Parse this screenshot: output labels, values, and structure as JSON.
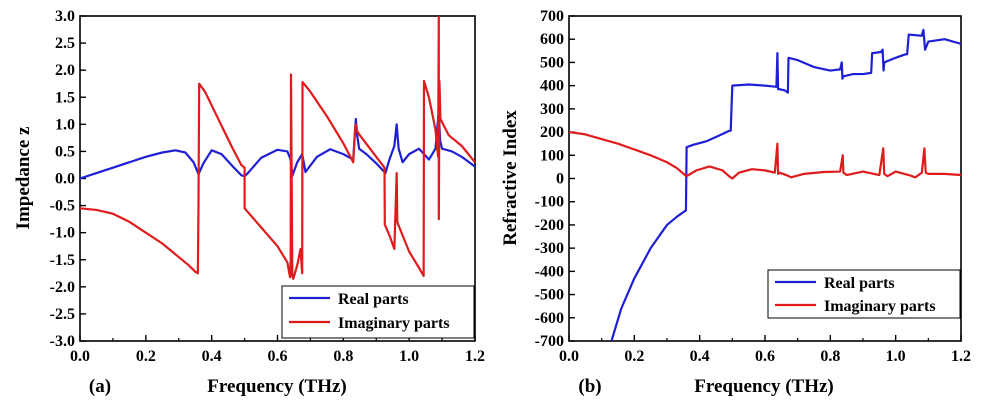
{
  "colors": {
    "real": "#1f1fd6",
    "imag": "#e01b1b",
    "axis": "#000000"
  },
  "chart_data": [
    {
      "type": "line",
      "panel": "(a)",
      "title": "",
      "xlabel": "Frequency (THz)",
      "ylabel": "Impedance z",
      "xlim": [
        0.0,
        1.2
      ],
      "ylim": [
        -3.0,
        3.0
      ],
      "xticks": [
        "0.0",
        "0.2",
        "0.4",
        "0.6",
        "0.8",
        "1.0",
        "1.2"
      ],
      "yticks": [
        "3.0",
        "2.5",
        "2.0",
        "1.5",
        "1.0",
        "0.5",
        "0.0",
        "-0.5",
        "-1.0",
        "-1.5",
        "-2.0",
        "-2.5",
        "-3.0"
      ],
      "grid": false,
      "legend_position": "bottom-right",
      "series": [
        {
          "name": "Real parts",
          "color": "#1f1fd6",
          "x": [
            0.0,
            0.05,
            0.1,
            0.15,
            0.2,
            0.25,
            0.29,
            0.32,
            0.345,
            0.36,
            0.375,
            0.4,
            0.43,
            0.46,
            0.49,
            0.5,
            0.51,
            0.55,
            0.6,
            0.63,
            0.64,
            0.645,
            0.66,
            0.675,
            0.685,
            0.72,
            0.76,
            0.8,
            0.83,
            0.838,
            0.842,
            0.848,
            0.87,
            0.9,
            0.928,
            0.94,
            0.955,
            0.962,
            0.968,
            0.98,
            1.0,
            1.03,
            1.045,
            1.06,
            1.08,
            1.09,
            1.094,
            1.1,
            1.13,
            1.16,
            1.2
          ],
          "y": [
            0.0,
            0.1,
            0.2,
            0.3,
            0.4,
            0.48,
            0.52,
            0.48,
            0.3,
            0.08,
            0.28,
            0.52,
            0.45,
            0.25,
            0.06,
            0.04,
            0.1,
            0.38,
            0.53,
            0.5,
            0.35,
            0.05,
            0.3,
            0.45,
            0.12,
            0.4,
            0.54,
            0.45,
            0.35,
            1.1,
            0.8,
            0.55,
            0.45,
            0.28,
            0.1,
            0.35,
            0.6,
            1.0,
            0.55,
            0.3,
            0.45,
            0.55,
            0.45,
            0.35,
            0.55,
            1.25,
            0.7,
            0.55,
            0.5,
            0.4,
            0.22
          ]
        },
        {
          "name": "Imaginary parts",
          "color": "#e01b1b",
          "x": [
            0.0,
            0.05,
            0.1,
            0.15,
            0.2,
            0.25,
            0.3,
            0.33,
            0.35,
            0.358,
            0.36,
            0.362,
            0.38,
            0.42,
            0.46,
            0.49,
            0.5,
            0.5001,
            0.55,
            0.6,
            0.63,
            0.638,
            0.64,
            0.641,
            0.645,
            0.648,
            0.66,
            0.67,
            0.675,
            0.676,
            0.7,
            0.75,
            0.8,
            0.83,
            0.836,
            0.838,
            0.839,
            0.85,
            0.9,
            0.925,
            0.926,
            0.94,
            0.955,
            0.962,
            0.964,
            0.97,
            1.0,
            1.03,
            1.044,
            1.045,
            1.06,
            1.08,
            1.088,
            1.09,
            1.0901,
            1.092,
            1.095,
            1.12,
            1.16,
            1.2
          ],
          "y": [
            -0.55,
            -0.58,
            -0.65,
            -0.8,
            -1.0,
            -1.2,
            -1.45,
            -1.6,
            -1.72,
            -1.75,
            -0.5,
            1.75,
            1.6,
            1.1,
            0.6,
            0.25,
            0.2,
            -0.55,
            -0.9,
            -1.25,
            -1.55,
            -1.82,
            -1.5,
            1.92,
            -1.8,
            -1.85,
            -1.6,
            -1.3,
            -1.75,
            1.78,
            1.6,
            1.15,
            0.65,
            0.3,
            0.95,
            1.0,
            0.9,
            0.8,
            0.4,
            0.2,
            -0.85,
            -1.05,
            -1.3,
            0.1,
            -0.8,
            -0.9,
            -1.35,
            -1.65,
            -1.8,
            1.8,
            1.5,
            0.9,
            0.4,
            3.0,
            -0.75,
            1.8,
            1.1,
            0.8,
            0.6,
            0.3
          ]
        }
      ]
    },
    {
      "type": "line",
      "panel": "(b)",
      "title": "",
      "xlabel": "Frequency (THz)",
      "ylabel": "Refractive Index",
      "xlim": [
        0.0,
        1.2
      ],
      "ylim": [
        -700,
        700
      ],
      "xticks": [
        "0.0",
        "0.2",
        "0.4",
        "0.6",
        "0.8",
        "1.0",
        "1.2"
      ],
      "yticks": [
        "700",
        "600",
        "500",
        "400",
        "300",
        "200",
        "100",
        "0",
        "-100",
        "-200",
        "-300",
        "-400",
        "-500",
        "-600",
        "-700"
      ],
      "grid": false,
      "legend_position": "bottom-right",
      "series": [
        {
          "name": "Real parts",
          "color": "#1f1fd6",
          "x": [
            0.13,
            0.16,
            0.2,
            0.25,
            0.3,
            0.33,
            0.355,
            0.358,
            0.36,
            0.38,
            0.42,
            0.46,
            0.49,
            0.495,
            0.5,
            0.55,
            0.6,
            0.635,
            0.638,
            0.64,
            0.643,
            0.66,
            0.67,
            0.672,
            0.7,
            0.75,
            0.8,
            0.83,
            0.835,
            0.837,
            0.84,
            0.87,
            0.9,
            0.925,
            0.928,
            0.93,
            0.955,
            0.96,
            0.963,
            0.965,
            1.0,
            1.03,
            1.035,
            1.04,
            1.08,
            1.085,
            1.09,
            1.1,
            1.15,
            1.2
          ],
          "y": [
            -700,
            -560,
            -430,
            -300,
            -200,
            -165,
            -140,
            -138,
            135,
            145,
            160,
            185,
            205,
            206,
            400,
            405,
            400,
            395,
            540,
            385,
            385,
            380,
            370,
            520,
            510,
            480,
            465,
            470,
            500,
            430,
            440,
            450,
            450,
            455,
            540,
            540,
            545,
            555,
            465,
            500,
            520,
            535,
            535,
            620,
            615,
            640,
            555,
            590,
            600,
            580
          ]
        },
        {
          "name": "Imaginary parts",
          "color": "#e01b1b",
          "x": [
            0.0,
            0.05,
            0.1,
            0.15,
            0.2,
            0.25,
            0.3,
            0.33,
            0.355,
            0.36,
            0.39,
            0.43,
            0.47,
            0.49,
            0.5,
            0.52,
            0.56,
            0.6,
            0.63,
            0.638,
            0.64,
            0.645,
            0.67,
            0.68,
            0.72,
            0.78,
            0.83,
            0.838,
            0.84,
            0.85,
            0.9,
            0.95,
            0.962,
            0.965,
            0.975,
            1.0,
            1.04,
            1.06,
            1.08,
            1.088,
            1.092,
            1.1,
            1.15,
            1.2
          ],
          "y": [
            200,
            190,
            170,
            150,
            125,
            100,
            70,
            45,
            15,
            10,
            35,
            52,
            35,
            10,
            0,
            25,
            40,
            35,
            25,
            150,
            20,
            25,
            12,
            5,
            20,
            28,
            30,
            100,
            25,
            15,
            30,
            15,
            130,
            20,
            10,
            30,
            15,
            5,
            25,
            130,
            25,
            20,
            20,
            15
          ]
        }
      ]
    }
  ]
}
